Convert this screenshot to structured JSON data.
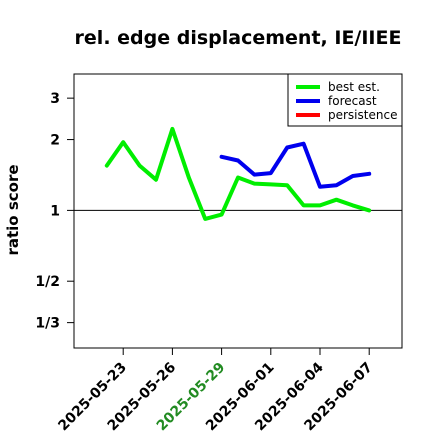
{
  "chart_data": {
    "type": "line",
    "title": "rel. edge displacement, IE/IIEE",
    "xlabel": "",
    "ylabel": "ratio score",
    "y_scale": "log",
    "ylim": [
      0.26,
      3.8
    ],
    "x_range": [
      "2025-05-20",
      "2025-06-09"
    ],
    "reference_line": 1,
    "yticks": [
      {
        "value": 0.3333,
        "label": "1/3"
      },
      {
        "value": 0.5,
        "label": "1/2"
      },
      {
        "value": 1,
        "label": "1"
      },
      {
        "value": 2,
        "label": "2"
      },
      {
        "value": 3,
        "label": "3"
      }
    ],
    "xticks": [
      {
        "date": "2025-05-23",
        "label": "2025-05-23",
        "color": "#000000"
      },
      {
        "date": "2025-05-26",
        "label": "2025-05-26",
        "color": "#000000"
      },
      {
        "date": "2025-05-29",
        "label": "2025-05-29",
        "color": "#228B22"
      },
      {
        "date": "2025-06-01",
        "label": "2025-06-01",
        "color": "#000000"
      },
      {
        "date": "2025-06-04",
        "label": "2025-06-04",
        "color": "#000000"
      },
      {
        "date": "2025-06-07",
        "label": "2025-06-07",
        "color": "#000000"
      }
    ],
    "legend_position": "top-right",
    "series": [
      {
        "name": "best est.",
        "color": "#00ee00",
        "points": [
          [
            "2025-05-22",
            1.55
          ],
          [
            "2025-05-23",
            1.95
          ],
          [
            "2025-05-24",
            1.55
          ],
          [
            "2025-05-25",
            1.35
          ],
          [
            "2025-05-26",
            2.22
          ],
          [
            "2025-05-27",
            1.38
          ],
          [
            "2025-05-28",
            0.92
          ],
          [
            "2025-05-29",
            0.96
          ],
          [
            "2025-05-30",
            1.38
          ],
          [
            "2025-05-31",
            1.3
          ],
          [
            "2025-06-01",
            1.29
          ],
          [
            "2025-06-02",
            1.28
          ],
          [
            "2025-06-03",
            1.05
          ],
          [
            "2025-06-04",
            1.05
          ],
          [
            "2025-06-05",
            1.11
          ],
          [
            "2025-06-06",
            1.05
          ],
          [
            "2025-06-07",
            1.0
          ]
        ]
      },
      {
        "name": "forecast",
        "color": "#0000ee",
        "points": [
          [
            "2025-05-29",
            1.69
          ],
          [
            "2025-05-30",
            1.63
          ],
          [
            "2025-05-31",
            1.42
          ],
          [
            "2025-06-01",
            1.44
          ],
          [
            "2025-06-02",
            1.85
          ],
          [
            "2025-06-03",
            1.92
          ],
          [
            "2025-06-04",
            1.26
          ],
          [
            "2025-06-05",
            1.28
          ],
          [
            "2025-06-06",
            1.4
          ],
          [
            "2025-06-07",
            1.43
          ]
        ]
      },
      {
        "name": "persistence",
        "color": "#ff0000",
        "points": []
      }
    ]
  }
}
